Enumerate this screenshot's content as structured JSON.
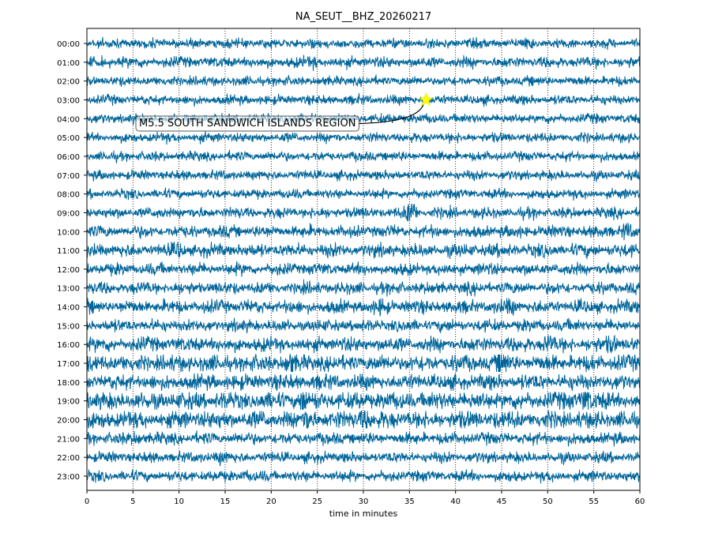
{
  "chart_data": {
    "type": "line",
    "title": "NA_SEUT__BHZ_20260217",
    "xlabel": "time in minutes",
    "ylabel": "",
    "xlim": [
      0,
      60
    ],
    "x_ticks": [
      "0",
      "5",
      "10",
      "15",
      "20",
      "25",
      "30",
      "35",
      "40",
      "45",
      "50",
      "55",
      "60"
    ],
    "grid": "vertical dotted",
    "trace_color": "#00659a",
    "rows": [
      {
        "label": "00:00",
        "noise": 0.8,
        "bursts": [
          [
            48,
            1.8
          ]
        ]
      },
      {
        "label": "01:00",
        "noise": 0.9,
        "bursts": [
          [
            24.5,
            1.6
          ]
        ]
      },
      {
        "label": "02:00",
        "noise": 0.8,
        "bursts": []
      },
      {
        "label": "03:00",
        "noise": 0.8,
        "bursts": []
      },
      {
        "label": "04:00",
        "noise": 0.8,
        "bursts": []
      },
      {
        "label": "05:00",
        "noise": 0.8,
        "bursts": []
      },
      {
        "label": "06:00",
        "noise": 0.8,
        "bursts": []
      },
      {
        "label": "07:00",
        "noise": 0.8,
        "bursts": []
      },
      {
        "label": "08:00",
        "noise": 0.8,
        "bursts": []
      },
      {
        "label": "09:00",
        "noise": 0.9,
        "bursts": [
          [
            35.2,
            3.0
          ]
        ]
      },
      {
        "label": "10:00",
        "noise": 1.0,
        "bursts": [
          [
            58.5,
            2.0
          ]
        ]
      },
      {
        "label": "11:00",
        "noise": 1.1,
        "bursts": [
          [
            10,
            1.6
          ]
        ]
      },
      {
        "label": "12:00",
        "noise": 1.0,
        "bursts": []
      },
      {
        "label": "13:00",
        "noise": 1.0,
        "bursts": []
      },
      {
        "label": "14:00",
        "noise": 1.1,
        "bursts": [
          [
            32,
            1.6
          ],
          [
            46,
            1.6
          ]
        ]
      },
      {
        "label": "15:00",
        "noise": 1.0,
        "bursts": []
      },
      {
        "label": "16:00",
        "noise": 1.2,
        "bursts": [
          [
            50,
            1.8
          ],
          [
            57,
            1.8
          ]
        ]
      },
      {
        "label": "17:00",
        "noise": 1.4,
        "bursts": [
          [
            22,
            1.8
          ],
          [
            45,
            2.0
          ]
        ]
      },
      {
        "label": "18:00",
        "noise": 1.3,
        "bursts": []
      },
      {
        "label": "19:00",
        "noise": 1.5,
        "bursts": [
          [
            23.5,
            2.0
          ],
          [
            54,
            2.4
          ]
        ]
      },
      {
        "label": "20:00",
        "noise": 1.5,
        "bursts": [
          [
            30,
            2.0
          ],
          [
            24,
            1.8
          ]
        ]
      },
      {
        "label": "21:00",
        "noise": 1.0,
        "bursts": [
          [
            5.5,
            1.8
          ]
        ]
      },
      {
        "label": "22:00",
        "noise": 0.9,
        "bursts": [
          [
            14.5,
            1.6
          ]
        ]
      },
      {
        "label": "23:00",
        "noise": 0.9,
        "bursts": [
          [
            17,
            1.5
          ]
        ]
      }
    ],
    "event": {
      "label": "M5.5 SOUTH SANDWICH ISLANDS REGION",
      "row": "03:00",
      "time_min": 36.8,
      "marker_color": "#ffff00"
    }
  }
}
